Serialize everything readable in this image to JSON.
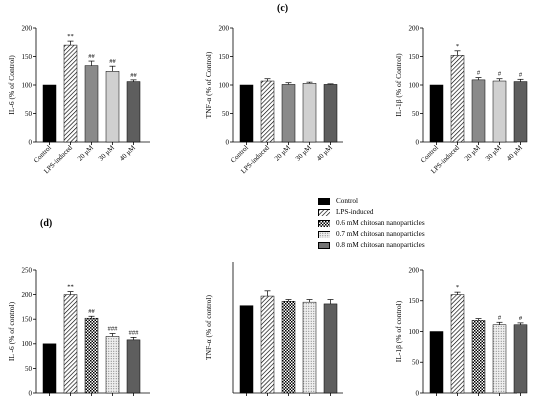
{
  "panel_labels": {
    "c": "(c)",
    "d": "(d)"
  },
  "legend": [
    {
      "label": "Control",
      "fill": "solid",
      "color": "#000000"
    },
    {
      "label": "LPS-induced",
      "fill": "diagonal",
      "color": "#000000"
    },
    {
      "label": "0.6 mM chitosan nanoparticles",
      "fill": "checker",
      "color": "#000000"
    },
    {
      "label": "0.7 mM chitosan nanoparticles",
      "fill": "dots",
      "color": "#d9d9d9"
    },
    {
      "label": "0.8 mM chitosan nanoparticles",
      "fill": "solid",
      "color": "#737373"
    }
  ],
  "chart_data": [
    {
      "id": "c-il6",
      "type": "bar",
      "ylabel": "IL-6 (% of Control)",
      "ylim": [
        0,
        200
      ],
      "yticks": [
        0,
        50,
        100,
        150,
        200
      ],
      "categories": [
        "Control",
        "LPS-induced",
        "20 μM",
        "30 μM",
        "40 μM"
      ],
      "values": [
        100,
        170,
        134,
        124,
        106
      ],
      "errors": [
        0,
        7,
        8,
        9,
        3
      ],
      "annotations": [
        "",
        "**",
        "##",
        "##",
        "##"
      ],
      "fills": [
        "solid-black",
        "hatch",
        "gray-mid",
        "gray-light",
        "gray-dark"
      ]
    },
    {
      "id": "c-tnfa",
      "type": "bar",
      "ylabel": "TNF-α (% of Control)",
      "ylim": [
        0,
        200
      ],
      "yticks": [
        0,
        50,
        100,
        150,
        200
      ],
      "categories": [
        "Control",
        "LPS-induced",
        "20 μM",
        "30 μM",
        "40 μM"
      ],
      "values": [
        100,
        107,
        101,
        103,
        101
      ],
      "errors": [
        0,
        4,
        3,
        2,
        1
      ],
      "annotations": [
        "",
        "",
        "",
        "",
        ""
      ],
      "fills": [
        "solid-black",
        "hatch",
        "gray-mid",
        "gray-light",
        "gray-dark"
      ]
    },
    {
      "id": "c-il1b",
      "type": "bar",
      "ylabel": "IL-1β (% of Control)",
      "ylim": [
        0,
        200
      ],
      "yticks": [
        0,
        50,
        100,
        150,
        200
      ],
      "categories": [
        "Control",
        "LPS-induced",
        "20 μM",
        "30 μM",
        "40 μM"
      ],
      "values": [
        100,
        152,
        109,
        107,
        106
      ],
      "errors": [
        0,
        8,
        4,
        4,
        4
      ],
      "annotations": [
        "",
        "*",
        "#",
        "#",
        "#"
      ],
      "fills": [
        "solid-black",
        "hatch",
        "gray-mid",
        "gray-light",
        "gray-dark"
      ]
    },
    {
      "id": "d-il6",
      "type": "bar",
      "ylabel": "IL -6 (% of control)",
      "ylim": [
        0,
        250
      ],
      "yticks": [
        0,
        50,
        100,
        150,
        200,
        250
      ],
      "categories": [
        "",
        "",
        "",
        "",
        ""
      ],
      "values": [
        100,
        200,
        152,
        115,
        108
      ],
      "errors": [
        0,
        6,
        4,
        6,
        5
      ],
      "annotations": [
        "",
        "**",
        "##",
        "###",
        "###"
      ],
      "fills": [
        "solid-black",
        "hatch",
        "checker",
        "dots",
        "gray-dark"
      ]
    },
    {
      "id": "d-tnfa",
      "type": "bar",
      "ylabel": "TNF-α (% of control)",
      "ylim": [
        0,
        150
      ],
      "yticks": [],
      "categories": [
        "",
        "",
        "",
        "",
        ""
      ],
      "values": [
        100,
        111,
        105,
        104,
        102
      ],
      "errors": [
        0,
        6,
        2,
        3,
        5
      ],
      "annotations": [
        "",
        "",
        "",
        "",
        ""
      ],
      "fills": [
        "solid-black",
        "hatch",
        "checker",
        "dots",
        "gray-dark"
      ]
    },
    {
      "id": "d-il1b",
      "type": "bar",
      "ylabel": "IL-1β (% of control)",
      "ylim": [
        0,
        200
      ],
      "yticks": [
        0,
        50,
        100,
        150,
        200
      ],
      "categories": [
        "",
        "",
        "",
        "",
        ""
      ],
      "values": [
        100,
        160,
        118,
        111,
        111
      ],
      "errors": [
        0,
        4,
        3,
        4,
        3
      ],
      "annotations": [
        "",
        "*",
        "",
        "#",
        "#"
      ],
      "fills": [
        "solid-black",
        "hatch",
        "checker",
        "dots",
        "gray-dark"
      ]
    }
  ]
}
